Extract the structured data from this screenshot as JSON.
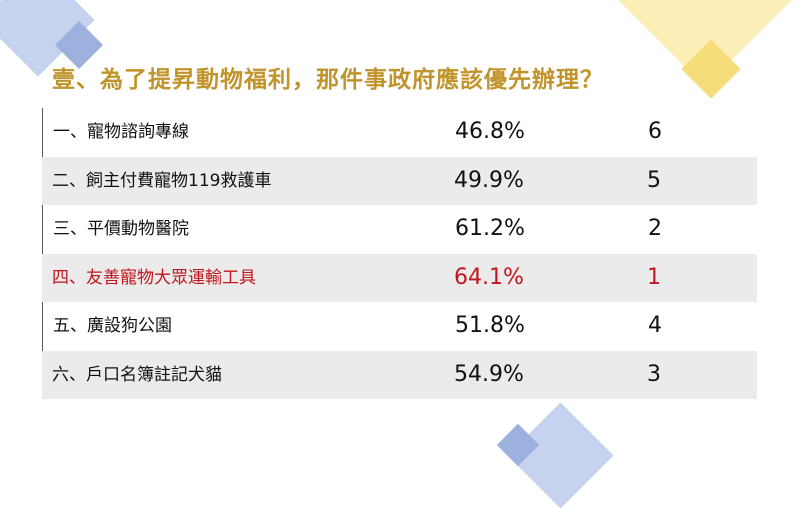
{
  "title": "壹、為了提昇動物福利，那件事政府應該優先辦理？",
  "highlight_color": "#c0161e",
  "rows": [
    {
      "label": "一、寵物諮詢專線",
      "percent": "46.8%",
      "rank": "6"
    },
    {
      "label": "二、飼主付費寵物119救護車",
      "percent": "49.9%",
      "rank": "5"
    },
    {
      "label": "三、平價動物醫院",
      "percent": "61.2%",
      "rank": "2"
    },
    {
      "label": "四、友善寵物大眾運輸工具",
      "percent": "64.1%",
      "rank": "1"
    },
    {
      "label": "五、廣設狗公園",
      "percent": "51.8%",
      "rank": "4"
    },
    {
      "label": "六、戶口名簿註記犬貓",
      "percent": "54.9%",
      "rank": "3"
    }
  ]
}
